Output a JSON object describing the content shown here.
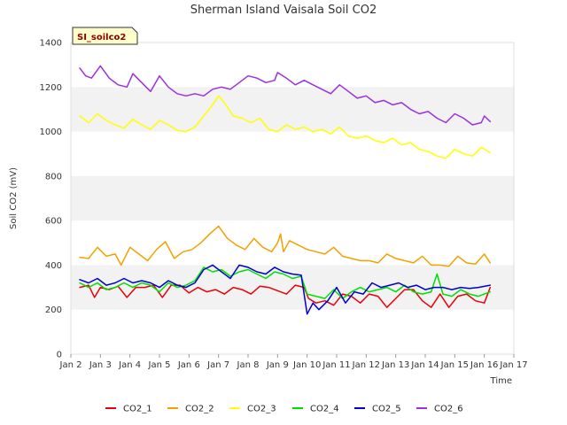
{
  "chart_data": {
    "type": "line",
    "title": "Sherman Island Vaisala Soil CO2",
    "xlabel": "Time",
    "ylabel": "Soil CO2 (mV)",
    "badge": "SI_soilco2",
    "ylim": [
      0,
      1400
    ],
    "yticks": [
      0,
      200,
      400,
      600,
      800,
      1000,
      1200,
      1400
    ],
    "xlim": [
      2,
      17
    ],
    "xticks": [
      {
        "v": 2,
        "label": "Jan 2"
      },
      {
        "v": 3,
        "label": "Jan 3"
      },
      {
        "v": 4,
        "label": "Jan 4"
      },
      {
        "v": 5,
        "label": "Jan 5"
      },
      {
        "v": 6,
        "label": "Jan 6"
      },
      {
        "v": 7,
        "label": "Jan 7"
      },
      {
        "v": 8,
        "label": "Jan 8"
      },
      {
        "v": 9,
        "label": "Jan 9"
      },
      {
        "v": 10,
        "label": "Jan 10"
      },
      {
        "v": 11,
        "label": "Jan 11"
      },
      {
        "v": 12,
        "label": "Jan 12"
      },
      {
        "v": 13,
        "label": "Jan 13"
      },
      {
        "v": 14,
        "label": "Jan 14"
      },
      {
        "v": 15,
        "label": "Jan 15"
      },
      {
        "v": 16,
        "label": "Jan 16"
      },
      {
        "v": 17,
        "label": "Jan 17"
      }
    ],
    "grid": "alternating horizontal bands",
    "legend_position": "bottom",
    "series": [
      {
        "name": "CO2_1",
        "color": "#e8000b",
        "x": [
          2.3,
          2.6,
          2.8,
          3.0,
          3.3,
          3.6,
          3.9,
          4.2,
          4.5,
          4.8,
          5.1,
          5.4,
          5.7,
          6.0,
          6.3,
          6.6,
          6.9,
          7.2,
          7.5,
          7.8,
          8.1,
          8.4,
          8.7,
          9.0,
          9.3,
          9.6,
          9.9,
          10.05,
          10.3,
          10.6,
          10.9,
          11.2,
          11.5,
          11.8,
          12.1,
          12.4,
          12.7,
          13.0,
          13.3,
          13.6,
          13.9,
          14.2,
          14.5,
          14.8,
          15.1,
          15.4,
          15.7,
          16.0,
          16.2
        ],
        "y": [
          300,
          310,
          255,
          300,
          290,
          305,
          255,
          300,
          300,
          310,
          255,
          310,
          310,
          275,
          300,
          280,
          290,
          270,
          300,
          290,
          270,
          305,
          300,
          285,
          270,
          310,
          300,
          250,
          230,
          240,
          220,
          270,
          260,
          230,
          270,
          260,
          210,
          250,
          290,
          290,
          240,
          210,
          270,
          210,
          260,
          270,
          240,
          230,
          300
        ]
      },
      {
        "name": "CO2_2",
        "color": "#f5a000",
        "x": [
          2.3,
          2.6,
          2.9,
          3.2,
          3.5,
          3.7,
          4.0,
          4.3,
          4.6,
          4.9,
          5.2,
          5.5,
          5.8,
          6.1,
          6.4,
          6.7,
          7.0,
          7.3,
          7.6,
          7.9,
          8.2,
          8.5,
          8.8,
          9.0,
          9.1,
          9.2,
          9.4,
          9.7,
          10.0,
          10.3,
          10.6,
          10.9,
          11.2,
          11.5,
          11.8,
          12.1,
          12.4,
          12.7,
          13.0,
          13.3,
          13.6,
          13.9,
          14.2,
          14.5,
          14.8,
          15.1,
          15.4,
          15.7,
          16.0,
          16.2
        ],
        "y": [
          435,
          430,
          480,
          440,
          450,
          400,
          480,
          450,
          420,
          470,
          505,
          430,
          460,
          470,
          500,
          540,
          575,
          520,
          490,
          470,
          520,
          480,
          460,
          500,
          540,
          460,
          510,
          490,
          470,
          460,
          450,
          480,
          440,
          430,
          420,
          420,
          410,
          450,
          430,
          420,
          410,
          440,
          400,
          400,
          395,
          440,
          410,
          405,
          450,
          410
        ]
      },
      {
        "name": "CO2_3",
        "color": "#ffff00",
        "x": [
          2.3,
          2.6,
          2.9,
          3.2,
          3.5,
          3.8,
          4.1,
          4.4,
          4.7,
          5.0,
          5.3,
          5.6,
          5.9,
          6.2,
          6.5,
          6.8,
          7.0,
          7.2,
          7.5,
          7.8,
          8.1,
          8.4,
          8.7,
          9.0,
          9.3,
          9.6,
          9.9,
          10.2,
          10.5,
          10.8,
          11.1,
          11.4,
          11.7,
          12.0,
          12.3,
          12.6,
          12.9,
          13.2,
          13.5,
          13.8,
          14.1,
          14.4,
          14.7,
          15.0,
          15.3,
          15.6,
          15.9,
          16.2
        ],
        "y": [
          1070,
          1040,
          1080,
          1050,
          1030,
          1015,
          1055,
          1030,
          1010,
          1050,
          1030,
          1005,
          1000,
          1020,
          1070,
          1120,
          1160,
          1130,
          1070,
          1060,
          1040,
          1060,
          1010,
          1000,
          1030,
          1010,
          1020,
          1000,
          1010,
          990,
          1020,
          980,
          970,
          980,
          960,
          950,
          970,
          940,
          950,
          920,
          910,
          890,
          880,
          920,
          900,
          890,
          930,
          905
        ]
      },
      {
        "name": "CO2_4",
        "color": "#00e000",
        "x": [
          2.3,
          2.6,
          2.9,
          3.2,
          3.5,
          3.8,
          4.1,
          4.4,
          4.7,
          5.0,
          5.3,
          5.6,
          5.9,
          6.2,
          6.5,
          6.8,
          7.1,
          7.4,
          7.7,
          8.0,
          8.3,
          8.6,
          8.9,
          9.2,
          9.5,
          9.8,
          10.0,
          10.3,
          10.6,
          10.9,
          11.2,
          11.5,
          11.8,
          12.1,
          12.4,
          12.7,
          13.0,
          13.3,
          13.6,
          13.9,
          14.2,
          14.4,
          14.6,
          14.9,
          15.2,
          15.5,
          15.8,
          16.2
        ],
        "y": [
          320,
          300,
          320,
          290,
          300,
          320,
          300,
          320,
          310,
          280,
          320,
          300,
          310,
          330,
          390,
          370,
          380,
          350,
          370,
          380,
          360,
          340,
          370,
          360,
          340,
          350,
          270,
          260,
          250,
          290,
          250,
          280,
          300,
          280,
          290,
          300,
          280,
          310,
          280,
          270,
          280,
          360,
          270,
          260,
          290,
          270,
          260,
          280
        ]
      },
      {
        "name": "CO2_5",
        "color": "#0000cc",
        "x": [
          2.3,
          2.6,
          2.9,
          3.2,
          3.5,
          3.8,
          4.1,
          4.4,
          4.7,
          5.0,
          5.3,
          5.6,
          5.9,
          6.2,
          6.5,
          6.8,
          7.1,
          7.4,
          7.7,
          8.0,
          8.3,
          8.6,
          8.9,
          9.2,
          9.5,
          9.8,
          10.0,
          10.2,
          10.4,
          10.7,
          11.0,
          11.3,
          11.6,
          11.9,
          12.2,
          12.5,
          12.8,
          13.1,
          13.4,
          13.7,
          14.0,
          14.3,
          14.6,
          14.9,
          15.2,
          15.5,
          15.8,
          16.2
        ],
        "y": [
          335,
          320,
          340,
          310,
          320,
          340,
          320,
          330,
          320,
          300,
          330,
          310,
          300,
          320,
          380,
          400,
          370,
          340,
          400,
          390,
          370,
          360,
          390,
          370,
          360,
          355,
          180,
          230,
          200,
          240,
          300,
          230,
          280,
          270,
          320,
          300,
          310,
          320,
          300,
          310,
          290,
          300,
          300,
          290,
          300,
          295,
          300,
          310
        ]
      },
      {
        "name": "CO2_6",
        "color": "#9b30e0",
        "x": [
          2.3,
          2.5,
          2.7,
          3.0,
          3.3,
          3.6,
          3.9,
          4.1,
          4.4,
          4.7,
          5.0,
          5.3,
          5.6,
          5.9,
          6.2,
          6.5,
          6.8,
          7.1,
          7.4,
          7.7,
          8.0,
          8.3,
          8.6,
          8.9,
          9.0,
          9.3,
          9.6,
          9.9,
          10.2,
          10.5,
          10.8,
          11.1,
          11.4,
          11.7,
          12.0,
          12.3,
          12.6,
          12.9,
          13.2,
          13.5,
          13.8,
          14.1,
          14.4,
          14.7,
          15.0,
          15.3,
          15.6,
          15.9,
          16.0,
          16.2
        ],
        "y": [
          1285,
          1250,
          1240,
          1295,
          1240,
          1210,
          1200,
          1260,
          1220,
          1180,
          1250,
          1200,
          1170,
          1160,
          1170,
          1160,
          1190,
          1200,
          1190,
          1220,
          1250,
          1240,
          1220,
          1230,
          1265,
          1240,
          1210,
          1230,
          1210,
          1190,
          1170,
          1210,
          1180,
          1150,
          1160,
          1130,
          1140,
          1120,
          1130,
          1100,
          1080,
          1090,
          1060,
          1040,
          1080,
          1060,
          1030,
          1040,
          1070,
          1045
        ]
      }
    ]
  }
}
